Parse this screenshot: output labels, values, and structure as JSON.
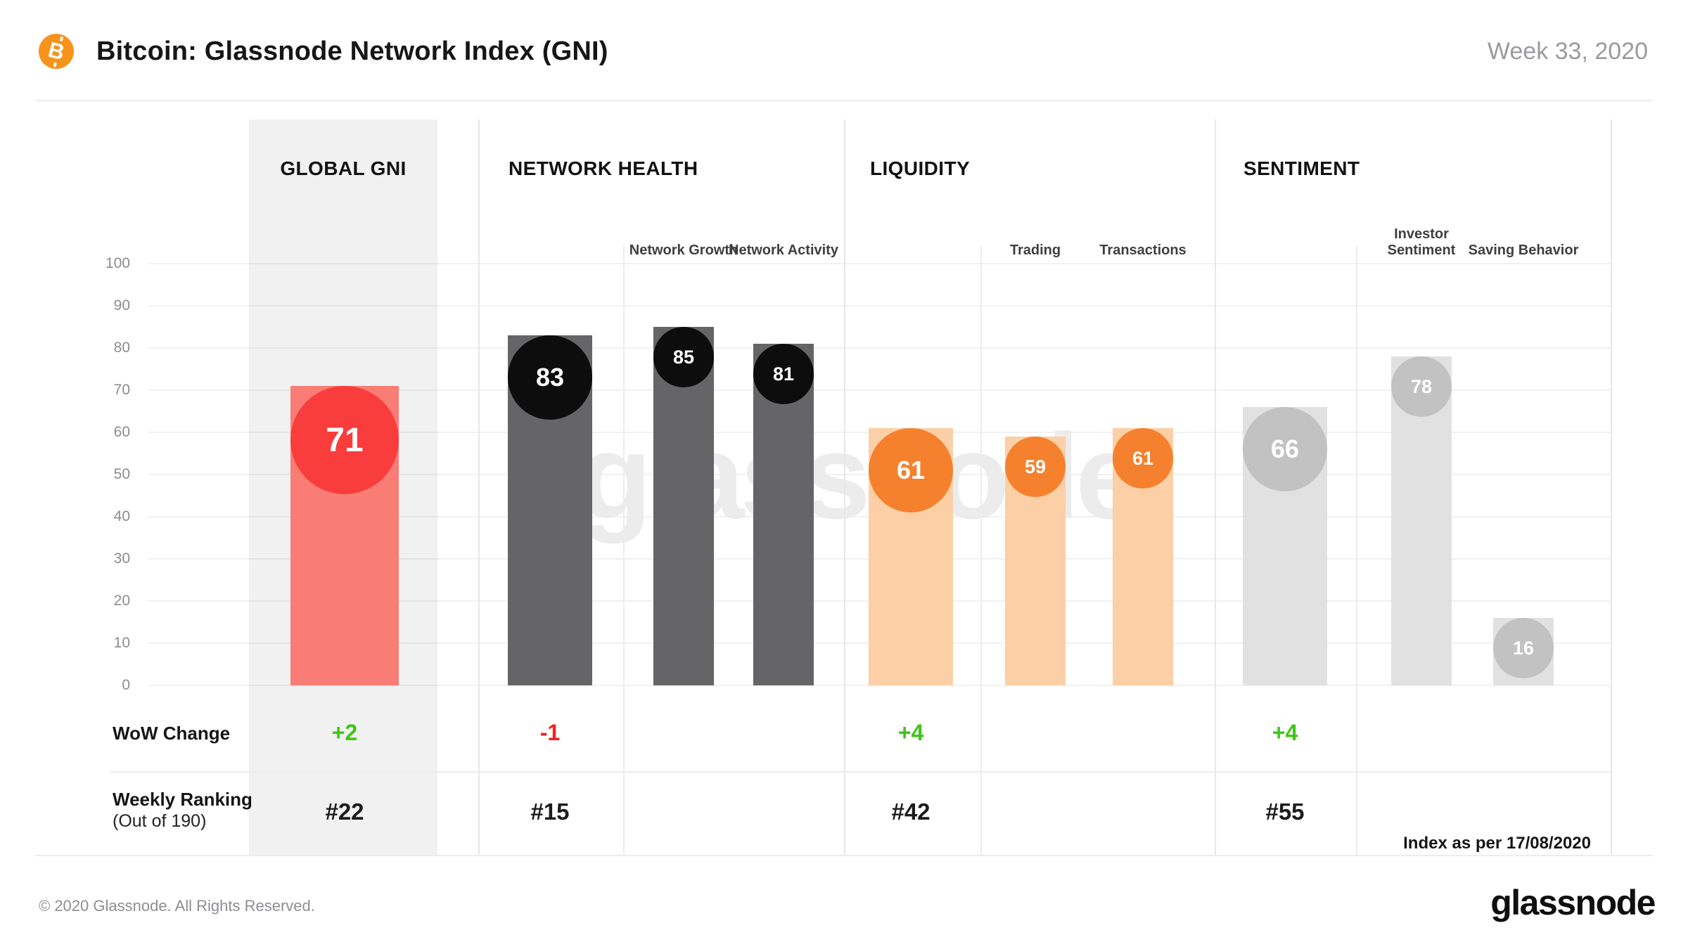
{
  "header": {
    "title": "Bitcoin: Glassnode Network Index (GNI)",
    "week": "Week 33, 2020",
    "coin_symbol": "B"
  },
  "watermark": "glassnode",
  "axis": {
    "ticks": [
      "100",
      "90",
      "80",
      "70",
      "60",
      "50",
      "40",
      "30",
      "20",
      "10",
      "0"
    ]
  },
  "rows": {
    "wow_label": "WoW  Change",
    "ranking_label": "Weekly Ranking",
    "ranking_sublabel": "(Out of 190)",
    "index_note": "Index as per 17/08/2020"
  },
  "chart_data": {
    "type": "bar",
    "title": "Bitcoin: Glassnode Network Index (GNI)",
    "subtitle": "Week 33, 2020",
    "ylim": [
      0,
      100
    ],
    "ytick_step": 10,
    "grid": true,
    "sections": [
      {
        "title": "GLOBAL GNI",
        "wow_change": "+2",
        "wow_color": "green",
        "weekly_ranking": "#22",
        "bars": [
          {
            "label": "Global GNI",
            "value": 71
          }
        ]
      },
      {
        "title": "NETWORK HEALTH",
        "wow_change": "-1",
        "wow_color": "red",
        "weekly_ranking": "#15",
        "bars": [
          {
            "label": "Network Health",
            "value": 83
          },
          {
            "label": "Network Growth",
            "value": 85
          },
          {
            "label": "Network Activity",
            "value": 81
          }
        ]
      },
      {
        "title": "LIQUIDITY",
        "wow_change": "+4",
        "wow_color": "green",
        "weekly_ranking": "#42",
        "bars": [
          {
            "label": "Liquidity",
            "value": 61
          },
          {
            "label": "Trading",
            "value": 59
          },
          {
            "label": "Transactions",
            "value": 61
          }
        ]
      },
      {
        "title": "SENTIMENT",
        "wow_change": "+4",
        "wow_color": "green",
        "weekly_ranking": "#55",
        "bars": [
          {
            "label": "Sentiment",
            "value": 66
          },
          {
            "label": "Investor Sentiment",
            "value": 78
          },
          {
            "label": "Saving Behavior",
            "value": 16
          }
        ]
      }
    ],
    "colors": {
      "global_circle": "#f93d3d",
      "global_bar": "#f97c75",
      "network_health_circle": "#0d0d0d",
      "network_health_bar": "#656567",
      "liquidity_circle": "#f5812e",
      "liquidity_bar": "#fdcfa6",
      "sentiment_circle": "#c2c2c3",
      "sentiment_bar": "#e1e1e2",
      "positive_change": "#3ec616",
      "negative_change": "#fb1d1d",
      "bitcoin_orange": "#f7931a"
    },
    "footnote": "Index as per 17/08/2020"
  },
  "footer": {
    "copyright": "© 2020 Glassnode. All Rights Reserved.",
    "brand": "glassnode"
  }
}
